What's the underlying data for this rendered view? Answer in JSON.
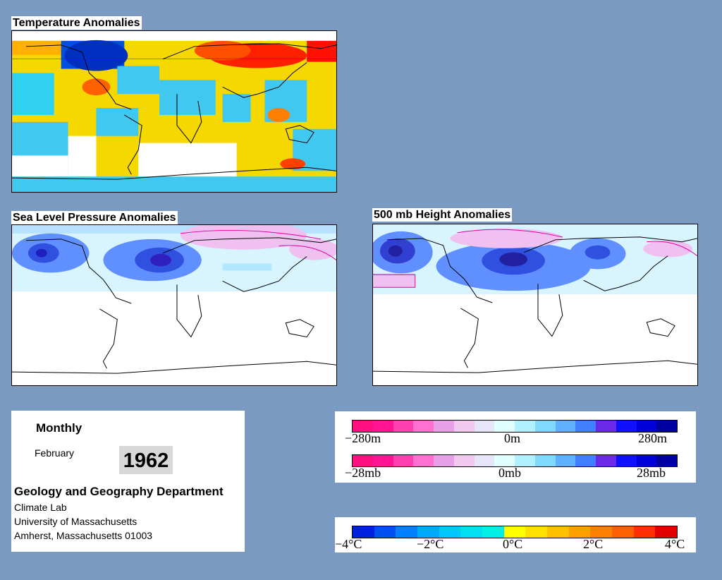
{
  "panels": {
    "temperature_title": "Temperature Anomalies",
    "slp_title": "Sea Level Pressure Anomalies",
    "height_title": "500 mb Height Anomalies"
  },
  "info": {
    "period": "Monthly",
    "month": "February",
    "year": "1962",
    "department": "Geology and Geography Department",
    "lab": "Climate Lab",
    "university": "University of Massachusetts",
    "address": "Amherst, Massachusetts 01003"
  },
  "legend_height": {
    "min_label": "−280m",
    "mid_label": "0m",
    "max_label": "280m",
    "colors": [
      "#ff1080",
      "#ff1493",
      "#ff40b0",
      "#ff70d0",
      "#e8a0e8",
      "#f0c8f0",
      "#e6e6fa",
      "#e0ffff",
      "#b0f0ff",
      "#80d8ff",
      "#60b0ff",
      "#4080ff",
      "#6a28e8",
      "#1010ff",
      "#0000d8",
      "#0000a0"
    ]
  },
  "legend_slp": {
    "min_label": "−28mb",
    "mid_label": "0mb",
    "max_label": "28mb",
    "colors": [
      "#ff1080",
      "#ff1493",
      "#ff40b0",
      "#ff70d0",
      "#e8a0e8",
      "#f0c8f0",
      "#e6e6fa",
      "#e0ffff",
      "#b0f0ff",
      "#80d8ff",
      "#60b0ff",
      "#4080ff",
      "#6a28e8",
      "#1010ff",
      "#0000d8",
      "#0000a0"
    ]
  },
  "legend_temp": {
    "labels": [
      "−4°C",
      "−2°C",
      "0°C",
      "2°C",
      "4°C"
    ],
    "colors": [
      "#0020e0",
      "#0050f0",
      "#0080ff",
      "#00a8ff",
      "#00c8ff",
      "#00e0f0",
      "#00f0e8",
      "#ffff00",
      "#ffe000",
      "#ffc000",
      "#ffa000",
      "#ff8000",
      "#ff6000",
      "#ff3000",
      "#e00000"
    ]
  }
}
